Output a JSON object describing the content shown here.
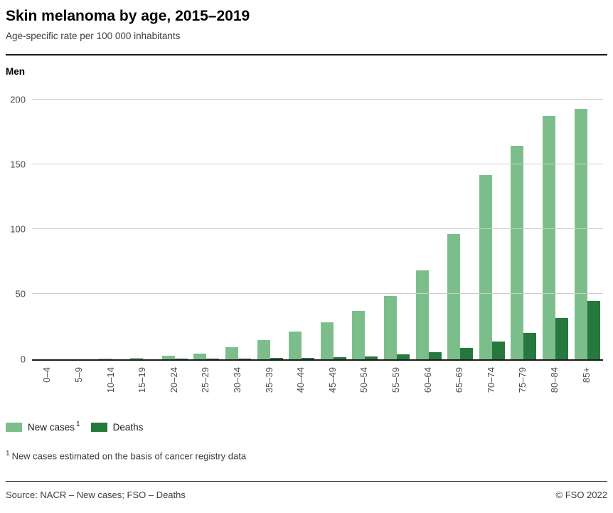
{
  "header": {
    "title": "Skin melanoma by age, 2015–2019",
    "subtitle": "Age-specific rate per 100 000 inhabitants"
  },
  "chart_data": {
    "type": "bar",
    "title": "Men",
    "categories": [
      "0–4",
      "5–9",
      "10–14",
      "15–19",
      "20–24",
      "25–29",
      "30–34",
      "35–39",
      "40–44",
      "45–49",
      "50–54",
      "55–59",
      "60–64",
      "65–69",
      "70–74",
      "75–79",
      "80–84",
      "85+"
    ],
    "series": [
      {
        "name": "New cases",
        "color": "#7cbe8b",
        "values": [
          0,
          0,
          0.1,
          0.9,
          2.3,
          4.2,
          9.3,
          14.4,
          21.3,
          28.5,
          36.8,
          48.6,
          68.5,
          96.5,
          142,
          164.4,
          187.5,
          192.8
        ]
      },
      {
        "name": "Deaths",
        "color": "#26793c",
        "values": [
          0,
          0,
          0,
          0,
          0.1,
          0.2,
          0.4,
          0.6,
          0.9,
          1.4,
          2.1,
          3.4,
          5.5,
          8.8,
          13.6,
          19.9,
          31.4,
          44.5
        ]
      }
    ],
    "xlabel": "",
    "ylabel": "",
    "ylim": [
      0,
      205
    ],
    "y_ticks": [
      0,
      50,
      100,
      150,
      200
    ],
    "grid": true,
    "legend_position": "bottom"
  },
  "footnote": {
    "marker": "1",
    "text": "New cases estimated on the basis of cancer registry data"
  },
  "footer": {
    "source": "Source: NACR – New cases; FSO – Deaths",
    "copyright": "© FSO 2022"
  }
}
